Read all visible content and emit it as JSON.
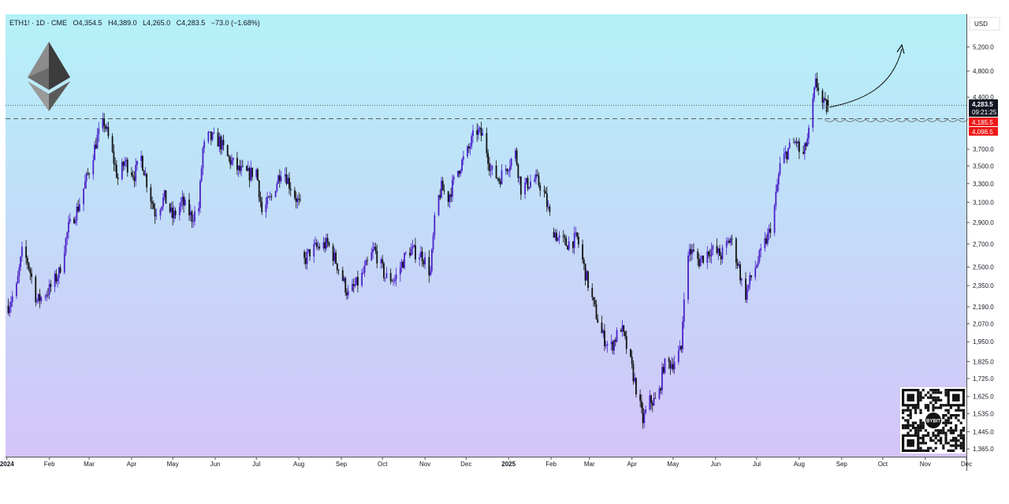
{
  "symbol_line": {
    "symbol": "ETH1! · 1D · CME",
    "open": "O4,354.5",
    "high": "H4,389.0",
    "low": "L4,265.0",
    "close": "C4,283.5",
    "change": "−73.0 (−1.68%)"
  },
  "currency_label": "USD",
  "price_tags": {
    "last": "4,283.5",
    "countdown": "09:21:25",
    "level_a": "4,185.5",
    "level_b": "4,098.5"
  },
  "qr_badge": "BYBIT",
  "colors": {
    "bg_top": "#b4f1f8",
    "bg_bottom": "#d4c4f8",
    "bull_candle": "#4b22c9",
    "bear_candle": "#111111",
    "last_tag": "#131722",
    "level_tag": "#f01818"
  },
  "chart_data": {
    "type": "candlestick",
    "title": "",
    "y_scale": "log",
    "ylim": [
      1330,
      5800
    ],
    "y_ticks": [
      {
        "value": 5200,
        "label": "5,200.0"
      },
      {
        "value": 4800,
        "label": "4,800.0"
      },
      {
        "value": 4400,
        "label": "4,400.0"
      },
      {
        "value": 3700,
        "label": "3,700.0"
      },
      {
        "value": 3500,
        "label": "3,500.0"
      },
      {
        "value": 3300,
        "label": "3,300.0"
      },
      {
        "value": 3100,
        "label": "3,100.0"
      },
      {
        "value": 2900,
        "label": "2,900.0"
      },
      {
        "value": 2700,
        "label": "2,700.0"
      },
      {
        "value": 2500,
        "label": "2,500.0"
      },
      {
        "value": 2350,
        "label": "2,350.0"
      },
      {
        "value": 2190,
        "label": "2,190.0"
      },
      {
        "value": 2070,
        "label": "2,070.0"
      },
      {
        "value": 1950,
        "label": "1,950.0"
      },
      {
        "value": 1825,
        "label": "1,825.0"
      },
      {
        "value": 1725,
        "label": "1,725.0"
      },
      {
        "value": 1625,
        "label": "1,625.0"
      },
      {
        "value": 1535,
        "label": "1,535.0"
      },
      {
        "value": 1445,
        "label": "1,445.0"
      },
      {
        "value": 1365,
        "label": "1,365.0"
      }
    ],
    "x_ticks": [
      {
        "date": "2024-01-01",
        "label": "2024",
        "bold": true
      },
      {
        "date": "2024-02-01",
        "label": "Feb"
      },
      {
        "date": "2024-03-01",
        "label": "Mar"
      },
      {
        "date": "2024-04-01",
        "label": "Apr"
      },
      {
        "date": "2024-05-01",
        "label": "May"
      },
      {
        "date": "2024-06-01",
        "label": "Jun"
      },
      {
        "date": "2024-07-01",
        "label": "Jul"
      },
      {
        "date": "2024-08-01",
        "label": "Aug"
      },
      {
        "date": "2024-09-01",
        "label": "Sep"
      },
      {
        "date": "2024-10-01",
        "label": "Oct"
      },
      {
        "date": "2024-11-01",
        "label": "Nov"
      },
      {
        "date": "2024-12-01",
        "label": "Dec"
      },
      {
        "date": "2025-01-01",
        "label": "2025",
        "bold": true
      },
      {
        "date": "2025-02-01",
        "label": "Feb"
      },
      {
        "date": "2025-03-01",
        "label": "Mar"
      },
      {
        "date": "2025-04-01",
        "label": "Apr"
      },
      {
        "date": "2025-05-01",
        "label": "May"
      },
      {
        "date": "2025-06-01",
        "label": "Jun"
      },
      {
        "date": "2025-07-01",
        "label": "Jul"
      },
      {
        "date": "2025-08-01",
        "label": "Aug"
      },
      {
        "date": "2025-09-01",
        "label": "Sep"
      },
      {
        "date": "2025-10-01",
        "label": "Oct"
      },
      {
        "date": "2025-11-01",
        "label": "Nov"
      },
      {
        "date": "2025-12-01",
        "label": "Dec"
      }
    ],
    "xlim": [
      "2023-12-31",
      "2025-12-01"
    ],
    "close_path": [
      [
        "2024-01-02",
        2200
      ],
      [
        "2024-01-08",
        2330
      ],
      [
        "2024-01-12",
        2620
      ],
      [
        "2024-01-16",
        2550
      ],
      [
        "2024-01-23",
        2230
      ],
      [
        "2024-02-01",
        2320
      ],
      [
        "2024-02-08",
        2450
      ],
      [
        "2024-02-15",
        2850
      ],
      [
        "2024-02-22",
        3050
      ],
      [
        "2024-03-01",
        3450
      ],
      [
        "2024-03-07",
        3850
      ],
      [
        "2024-03-12",
        4050
      ],
      [
        "2024-03-17",
        3700
      ],
      [
        "2024-03-22",
        3350
      ],
      [
        "2024-03-27",
        3550
      ],
      [
        "2024-04-03",
        3400
      ],
      [
        "2024-04-08",
        3600
      ],
      [
        "2024-04-13",
        3250
      ],
      [
        "2024-04-18",
        3000
      ],
      [
        "2024-04-25",
        3150
      ],
      [
        "2024-05-01",
        2950
      ],
      [
        "2024-05-08",
        3100
      ],
      [
        "2024-05-15",
        2950
      ],
      [
        "2024-05-20",
        3050
      ],
      [
        "2024-05-23",
        3700
      ],
      [
        "2024-05-27",
        3850
      ],
      [
        "2024-06-04",
        3800
      ],
      [
        "2024-06-10",
        3600
      ],
      [
        "2024-06-18",
        3450
      ],
      [
        "2024-06-25",
        3400
      ],
      [
        "2024-07-01",
        3450
      ],
      [
        "2024-07-05",
        3000
      ],
      [
        "2024-07-12",
        3150
      ],
      [
        "2024-07-20",
        3500
      ],
      [
        "2024-07-25",
        3300
      ],
      [
        "2024-08-02",
        3050
      ],
      [
        "2024-08-05",
        2550
      ],
      [
        "2024-08-10",
        2650
      ],
      [
        "2024-08-22",
        2700
      ],
      [
        "2024-08-28",
        2550
      ],
      [
        "2024-09-06",
        2280
      ],
      [
        "2024-09-15",
        2400
      ],
      [
        "2024-09-25",
        2650
      ],
      [
        "2024-10-03",
        2420
      ],
      [
        "2024-10-10",
        2400
      ],
      [
        "2024-10-20",
        2650
      ],
      [
        "2024-10-30",
        2600
      ],
      [
        "2024-11-05",
        2450
      ],
      [
        "2024-11-09",
        3050
      ],
      [
        "2024-11-13",
        3250
      ],
      [
        "2024-11-18",
        3150
      ],
      [
        "2024-11-25",
        3450
      ],
      [
        "2024-12-03",
        3700
      ],
      [
        "2024-12-08",
        3950
      ],
      [
        "2024-12-14",
        3850
      ],
      [
        "2024-12-19",
        3450
      ],
      [
        "2024-12-25",
        3350
      ],
      [
        "2025-01-06",
        3650
      ],
      [
        "2025-01-10",
        3250
      ],
      [
        "2025-01-15",
        3300
      ],
      [
        "2025-01-20",
        3350
      ],
      [
        "2025-01-26",
        3250
      ],
      [
        "2025-02-02",
        2850
      ],
      [
        "2025-02-06",
        2750
      ],
      [
        "2025-02-12",
        2700
      ],
      [
        "2025-02-20",
        2750
      ],
      [
        "2025-02-26",
        2450
      ],
      [
        "2025-03-04",
        2200
      ],
      [
        "2025-03-10",
        2000
      ],
      [
        "2025-03-16",
        1900
      ],
      [
        "2025-03-24",
        2050
      ],
      [
        "2025-03-30",
        1850
      ],
      [
        "2025-04-06",
        1600
      ],
      [
        "2025-04-09",
        1500
      ],
      [
        "2025-04-14",
        1600
      ],
      [
        "2025-04-20",
        1600
      ],
      [
        "2025-04-24",
        1800
      ],
      [
        "2025-05-01",
        1820
      ],
      [
        "2025-05-07",
        1900
      ],
      [
        "2025-05-09",
        2300
      ],
      [
        "2025-05-13",
        2650
      ],
      [
        "2025-05-20",
        2550
      ],
      [
        "2025-05-28",
        2650
      ],
      [
        "2025-06-05",
        2600
      ],
      [
        "2025-06-12",
        2750
      ],
      [
        "2025-06-18",
        2500
      ],
      [
        "2025-06-22",
        2250
      ],
      [
        "2025-06-28",
        2450
      ],
      [
        "2025-07-03",
        2580
      ],
      [
        "2025-07-10",
        2800
      ],
      [
        "2025-07-14",
        3050
      ],
      [
        "2025-07-18",
        3500
      ],
      [
        "2025-07-24",
        3700
      ],
      [
        "2025-07-30",
        3800
      ],
      [
        "2025-08-03",
        3550
      ],
      [
        "2025-08-08",
        3900
      ],
      [
        "2025-08-13",
        4600
      ],
      [
        "2025-08-15",
        4550
      ],
      [
        "2025-08-18",
        4300
      ],
      [
        "2025-08-21",
        4250
      ],
      [
        "2025-08-22",
        4283.5
      ]
    ],
    "horizontal_lines": [
      {
        "value": 4283.5,
        "style": "dotted"
      },
      {
        "value": 4098.5,
        "style": "dashed"
      }
    ]
  }
}
